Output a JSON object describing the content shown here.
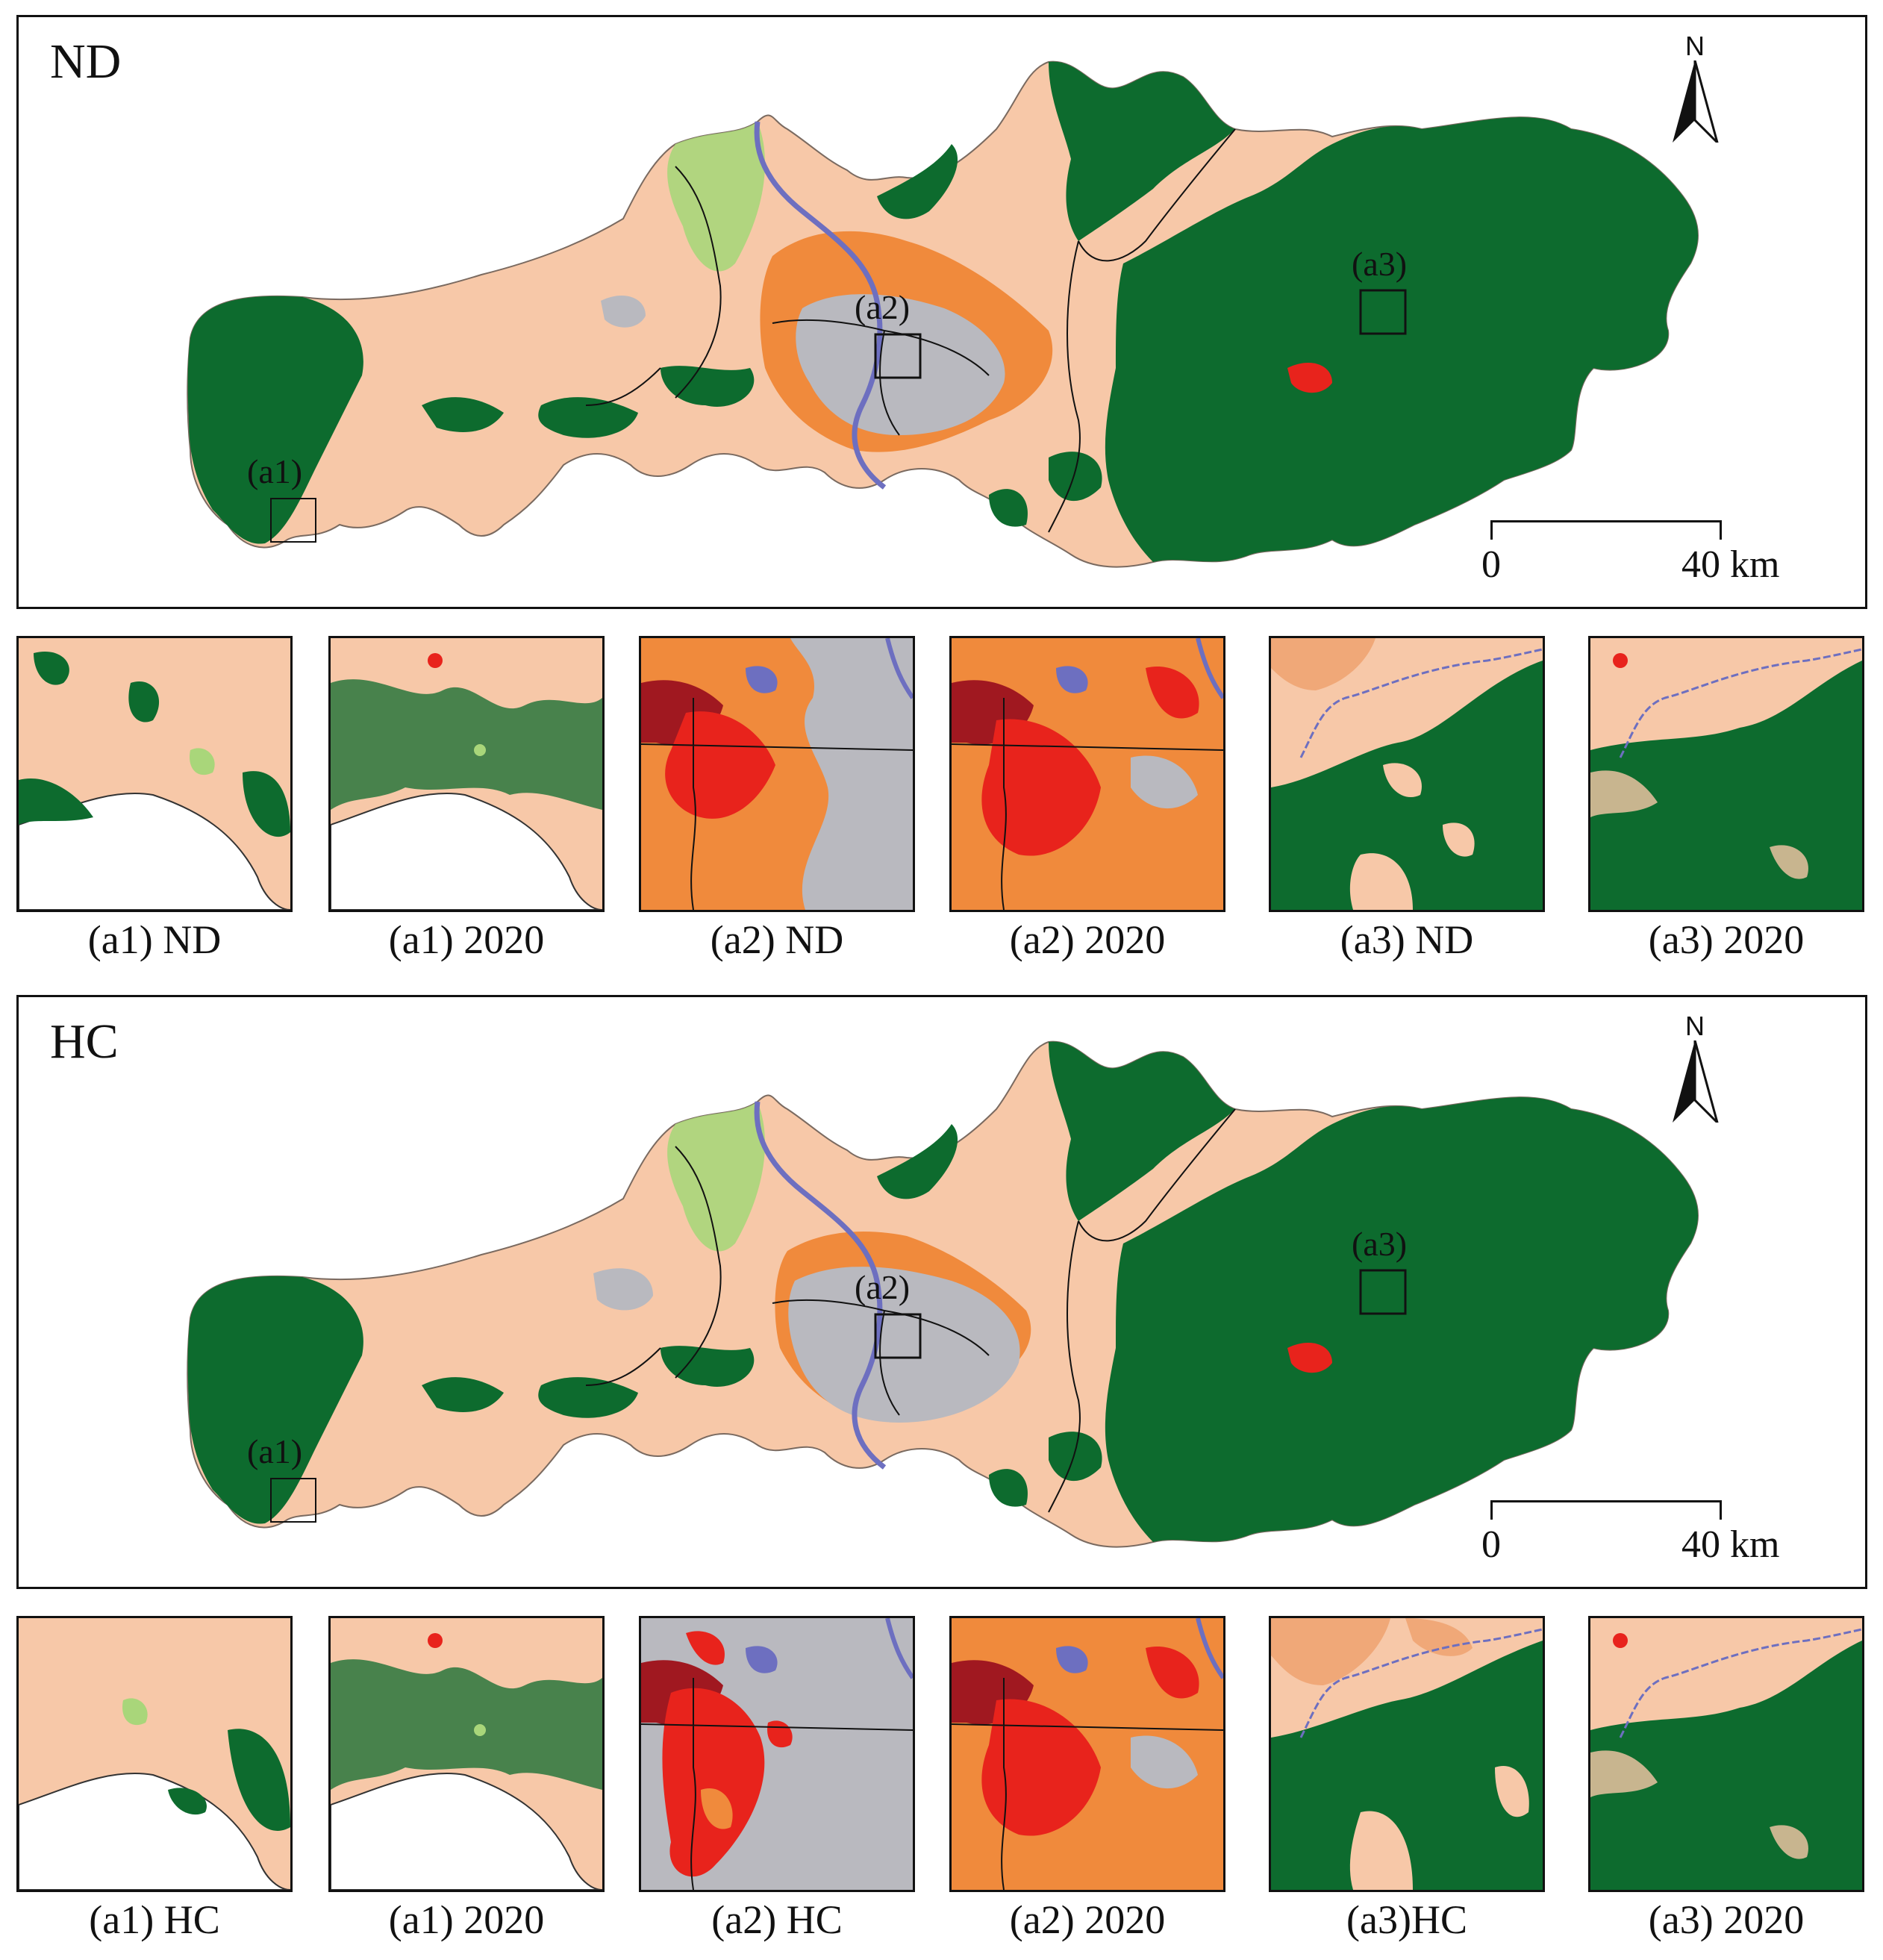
{
  "panels": [
    {
      "label": "ND",
      "north": "N",
      "scale": {
        "zero": "0",
        "max": "40 km"
      },
      "inset_labels": [
        "(a1)",
        "(a2)",
        "(a3)"
      ],
      "thumbnails": [
        "(a1) ND",
        "(a1) 2020",
        "(a2) ND",
        "(a2) 2020",
        "(a3) ND",
        "(a3) 2020"
      ]
    },
    {
      "label": "HC",
      "north": "N",
      "scale": {
        "zero": "0",
        "max": "40 km"
      },
      "inset_labels": [
        "(a1)",
        "(a2)",
        "(a3)"
      ],
      "thumbnails": [
        "(a1) HC",
        "(a1) 2020",
        "(a2) HC",
        "(a2) 2020",
        "(a3)HC",
        "(a3) 2020"
      ]
    }
  ],
  "colors": {
    "forest": "#0d6b2e",
    "cropland": "#f7c8a8",
    "grassland": "#a9d67a",
    "urban_gray": "#b9b9bf",
    "urban_orange": "#f08a3c",
    "urban_red": "#e8231c",
    "urban_darkred": "#a01820",
    "river": "#6d6fc0"
  }
}
